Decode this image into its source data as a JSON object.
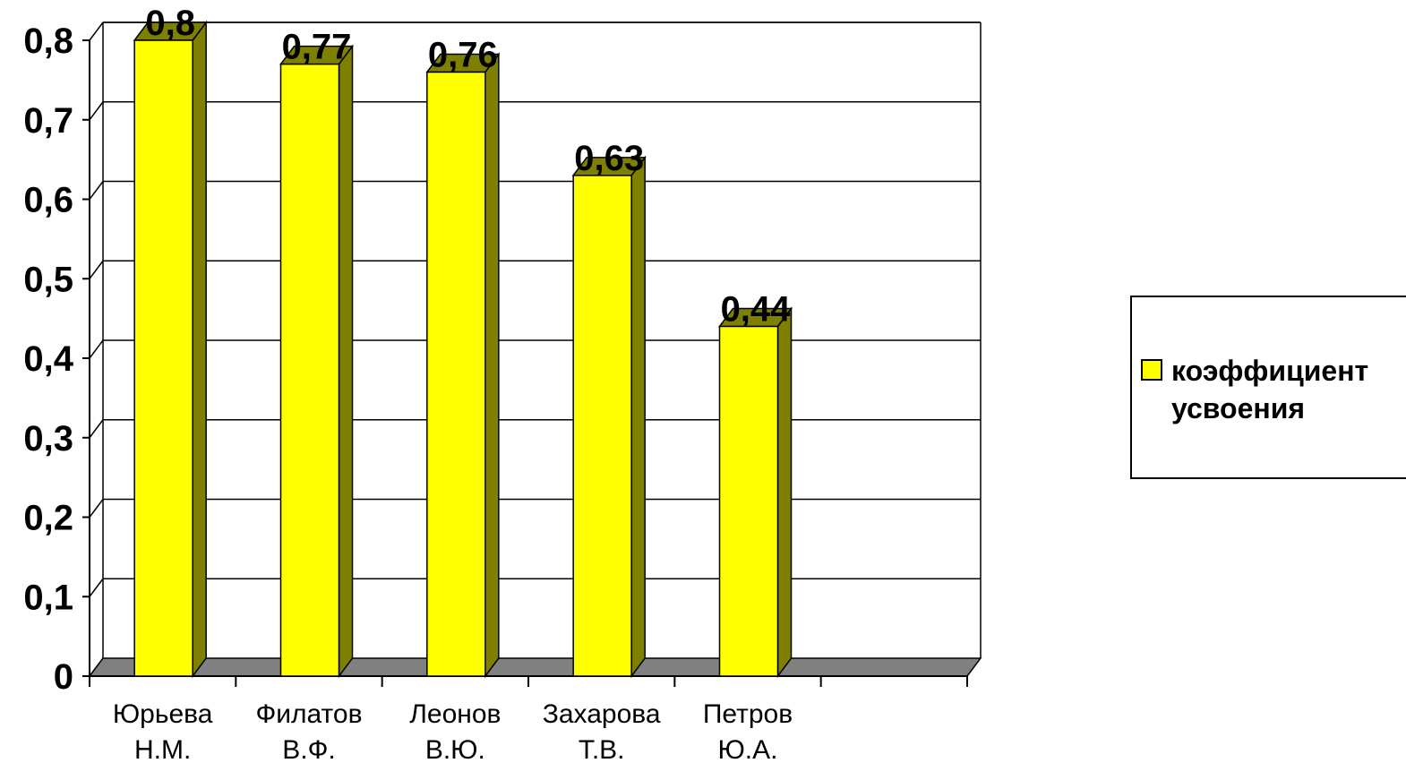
{
  "chart_data": {
    "type": "bar",
    "categories": [
      [
        "Юрьева",
        "Н.М."
      ],
      [
        "Филатов",
        "В.Ф."
      ],
      [
        "Леонов",
        "В.Ю."
      ],
      [
        "Захарова",
        "Т.В."
      ],
      [
        "Петров",
        "Ю.А."
      ]
    ],
    "series": [
      {
        "name": "коэффициент усвоения",
        "name_lines": [
          "коэффициент",
          "усвоения"
        ],
        "values": [
          0.8,
          0.77,
          0.76,
          0.63,
          0.44
        ],
        "value_labels": [
          "0,8",
          "0,77",
          "0,76",
          "0,63",
          "0,44"
        ]
      }
    ],
    "y_ticks": [
      "0",
      "0,1",
      "0,2",
      "0,3",
      "0,4",
      "0,5",
      "0,6",
      "0,7",
      "0,8"
    ],
    "ylim": [
      0,
      0.8
    ],
    "grid": true,
    "legend": "right",
    "colors": {
      "bar_front": "#ffff00",
      "bar_side": "#808000",
      "floor": "#808080",
      "grid": "#000000"
    }
  }
}
